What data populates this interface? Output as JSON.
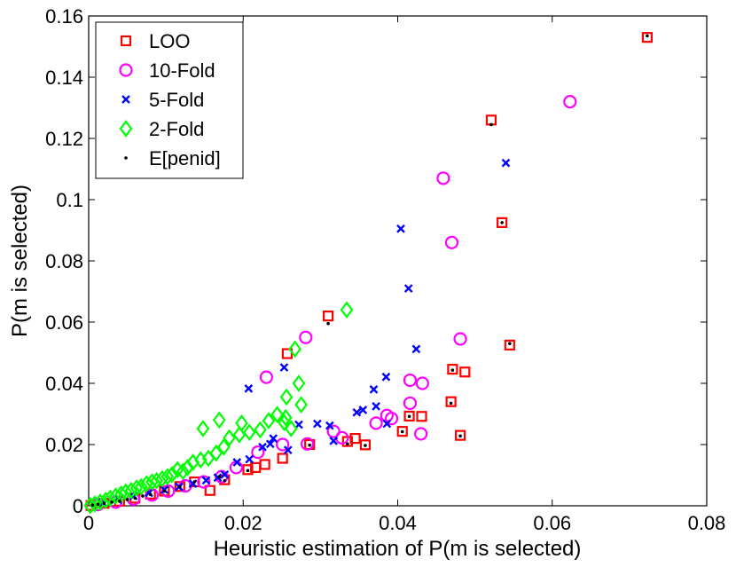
{
  "chart_data": {
    "type": "scatter",
    "title": "",
    "xlabel": "Heuristic estimation of P(m is selected)",
    "ylabel": "P(m is selected)",
    "xlim": [
      0,
      0.08
    ],
    "ylim": [
      0,
      0.16
    ],
    "xticks": [
      0,
      0.02,
      0.04,
      0.06,
      0.08
    ],
    "xtick_labels": [
      "0",
      "0.02",
      "0.04",
      "0.06",
      "0.08"
    ],
    "yticks": [
      0,
      0.02,
      0.04,
      0.06,
      0.08,
      0.1,
      0.12,
      0.14,
      0.16
    ],
    "ytick_labels": [
      "0",
      "0.02",
      "0.04",
      "0.06",
      "0.08",
      "0.1",
      "0.12",
      "0.14",
      "0.16"
    ],
    "grid": false,
    "legend_position": "top-left",
    "series": [
      {
        "name": "LOO",
        "marker": "square",
        "color": "#ff0000",
        "points": [
          [
            0.0723,
            0.153
          ],
          [
            0.0521,
            0.126
          ],
          [
            0.0535,
            0.0925
          ],
          [
            0.031,
            0.062
          ],
          [
            0.0257,
            0.0497
          ],
          [
            0.0545,
            0.0525
          ],
          [
            0.0471,
            0.0446
          ],
          [
            0.0487,
            0.0437
          ],
          [
            0.0469,
            0.034
          ],
          [
            0.0415,
            0.0293
          ],
          [
            0.0431,
            0.0292
          ],
          [
            0.0406,
            0.0243
          ],
          [
            0.0481,
            0.023
          ],
          [
            0.0335,
            0.021
          ],
          [
            0.0345,
            0.022
          ],
          [
            0.0358,
            0.0199
          ],
          [
            0.0286,
            0.02
          ],
          [
            0.0251,
            0.0155
          ],
          [
            0.0228,
            0.0135
          ],
          [
            0.0206,
            0.0118
          ],
          [
            0.0216,
            0.0125
          ],
          [
            0.0176,
            0.0085
          ],
          [
            0.0157,
            0.005
          ],
          [
            0.0137,
            0.0078
          ],
          [
            0.0118,
            0.0063
          ],
          [
            0.0098,
            0.0048
          ],
          [
            0.008,
            0.0038
          ],
          [
            0.006,
            0.0025
          ],
          [
            0.004,
            0.0015
          ],
          [
            0.002,
            0.0008
          ],
          [
            0.0003,
            0.0001
          ]
        ]
      },
      {
        "name": "10-Fold",
        "marker": "circle",
        "color": "#ff00ff",
        "points": [
          [
            0.0623,
            0.132
          ],
          [
            0.0459,
            0.107
          ],
          [
            0.047,
            0.086
          ],
          [
            0.0281,
            0.055
          ],
          [
            0.0481,
            0.0545
          ],
          [
            0.023,
            0.042
          ],
          [
            0.0416,
            0.041
          ],
          [
            0.0432,
            0.04
          ],
          [
            0.0416,
            0.0335
          ],
          [
            0.0372,
            0.027
          ],
          [
            0.0392,
            0.0285
          ],
          [
            0.0386,
            0.0295
          ],
          [
            0.043,
            0.0235
          ],
          [
            0.0317,
            0.0243
          ],
          [
            0.0328,
            0.0222
          ],
          [
            0.0283,
            0.0202
          ],
          [
            0.0251,
            0.02
          ],
          [
            0.0219,
            0.0175
          ],
          [
            0.0191,
            0.0125
          ],
          [
            0.0172,
            0.0095
          ],
          [
            0.0149,
            0.0078
          ],
          [
            0.0125,
            0.0065
          ],
          [
            0.0103,
            0.0048
          ],
          [
            0.0082,
            0.0035
          ],
          [
            0.0058,
            0.0022
          ],
          [
            0.0035,
            0.0012
          ],
          [
            0.0012,
            0.0004
          ]
        ]
      },
      {
        "name": "5-Fold",
        "marker": "x",
        "color": "#0000ff",
        "points": [
          [
            0.054,
            0.112
          ],
          [
            0.0404,
            0.0905
          ],
          [
            0.0414,
            0.071
          ],
          [
            0.0424,
            0.0512
          ],
          [
            0.0253,
            0.0452
          ],
          [
            0.0385,
            0.0421
          ],
          [
            0.0207,
            0.0383
          ],
          [
            0.0369,
            0.038
          ],
          [
            0.0355,
            0.0313
          ],
          [
            0.0372,
            0.0325
          ],
          [
            0.0347,
            0.0305
          ],
          [
            0.0386,
            0.0268
          ],
          [
            0.0312,
            0.0262
          ],
          [
            0.0296,
            0.0268
          ],
          [
            0.0272,
            0.0265
          ],
          [
            0.0239,
            0.022
          ],
          [
            0.0317,
            0.0212
          ],
          [
            0.0225,
            0.0192
          ],
          [
            0.0235,
            0.0202
          ],
          [
            0.0258,
            0.0182
          ],
          [
            0.0208,
            0.0152
          ],
          [
            0.0192,
            0.0142
          ],
          [
            0.0176,
            0.0102
          ],
          [
            0.0167,
            0.0092
          ],
          [
            0.0152,
            0.0083
          ],
          [
            0.0135,
            0.0072
          ],
          [
            0.0117,
            0.0062
          ],
          [
            0.0098,
            0.0052
          ],
          [
            0.0078,
            0.0042
          ],
          [
            0.0058,
            0.0032
          ],
          [
            0.0038,
            0.002
          ],
          [
            0.0018,
            0.001
          ]
        ]
      },
      {
        "name": "2-Fold",
        "marker": "diamond",
        "color": "#00ff00",
        "points": [
          [
            0.0334,
            0.064
          ],
          [
            0.0267,
            0.0512
          ],
          [
            0.0272,
            0.04
          ],
          [
            0.0256,
            0.0355
          ],
          [
            0.0275,
            0.033
          ],
          [
            0.0169,
            0.028
          ],
          [
            0.0148,
            0.0252
          ],
          [
            0.0198,
            0.027
          ],
          [
            0.0208,
            0.024
          ],
          [
            0.0233,
            0.0278
          ],
          [
            0.0244,
            0.0298
          ],
          [
            0.0255,
            0.0288
          ],
          [
            0.0262,
            0.0252
          ],
          [
            0.0253,
            0.0272
          ],
          [
            0.0222,
            0.0248
          ],
          [
            0.0195,
            0.0232
          ],
          [
            0.0182,
            0.0222
          ],
          [
            0.0175,
            0.0192
          ],
          [
            0.0165,
            0.0172
          ],
          [
            0.0155,
            0.0155
          ],
          [
            0.0145,
            0.015
          ],
          [
            0.0135,
            0.0142
          ],
          [
            0.0128,
            0.0125
          ],
          [
            0.0122,
            0.0112
          ],
          [
            0.0115,
            0.0118
          ],
          [
            0.0108,
            0.0102
          ],
          [
            0.0102,
            0.0095
          ],
          [
            0.0095,
            0.0088
          ],
          [
            0.0088,
            0.0082
          ],
          [
            0.0082,
            0.0078
          ],
          [
            0.0075,
            0.0072
          ],
          [
            0.0068,
            0.0062
          ],
          [
            0.0062,
            0.0058
          ],
          [
            0.0055,
            0.005
          ],
          [
            0.0048,
            0.0045
          ],
          [
            0.0042,
            0.0038
          ],
          [
            0.0035,
            0.0032
          ],
          [
            0.0028,
            0.0025
          ],
          [
            0.0022,
            0.0018
          ],
          [
            0.0015,
            0.0012
          ],
          [
            0.0008,
            0.0006
          ],
          [
            0.0002,
            0.0001
          ]
        ]
      },
      {
        "name": "E[penid]",
        "marker": "dot",
        "color": "#000000",
        "points": [
          [
            0.0723,
            0.1535
          ],
          [
            0.0521,
            0.1245
          ],
          [
            0.0535,
            0.0925
          ],
          [
            0.031,
            0.0595
          ],
          [
            0.0545,
            0.053
          ],
          [
            0.0471,
            0.0443
          ],
          [
            0.0469,
            0.0335
          ],
          [
            0.0415,
            0.0292
          ],
          [
            0.0406,
            0.0242
          ],
          [
            0.0481,
            0.0228
          ],
          [
            0.0358,
            0.0197
          ],
          [
            0.0286,
            0.0198
          ],
          [
            0.0335,
            0.0202
          ],
          [
            0.0206,
            0.0115
          ],
          [
            0.0176,
            0.0082
          ],
          [
            0.0169,
            0.0095
          ],
          [
            0.0137,
            0.0078
          ],
          [
            0.0118,
            0.0062
          ],
          [
            0.0098,
            0.0048
          ],
          [
            0.008,
            0.0037
          ],
          [
            0.007,
            0.0032
          ],
          [
            0.006,
            0.0025
          ],
          [
            0.005,
            0.002
          ],
          [
            0.004,
            0.0015
          ],
          [
            0.003,
            0.0012
          ],
          [
            0.002,
            0.0008
          ],
          [
            0.0012,
            0.0005
          ],
          [
            0.0005,
            0.0002
          ]
        ]
      }
    ]
  }
}
